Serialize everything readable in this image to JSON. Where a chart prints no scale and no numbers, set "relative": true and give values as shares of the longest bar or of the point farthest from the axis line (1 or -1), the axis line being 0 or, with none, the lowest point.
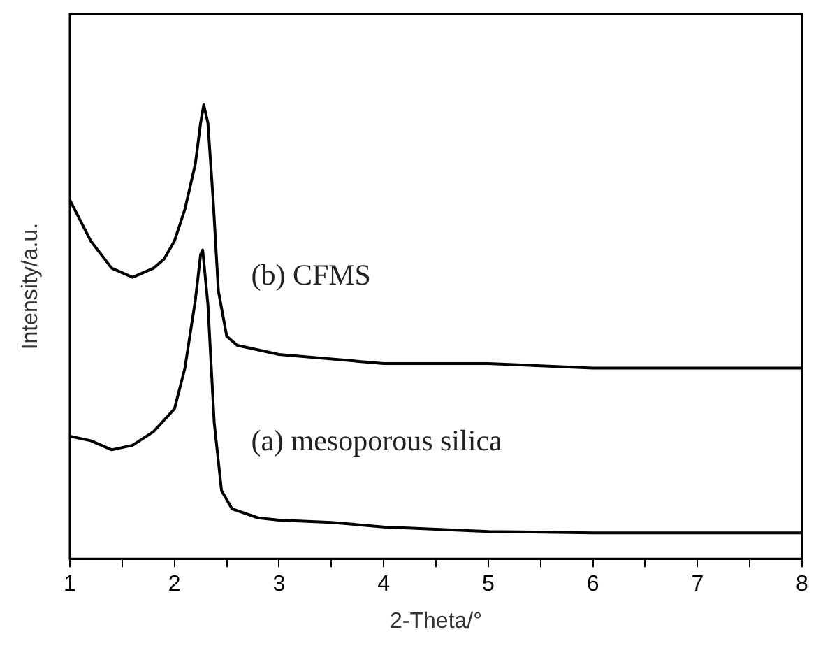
{
  "chart_data": {
    "type": "line",
    "relative": true,
    "xlabel": "2-Theta/°",
    "ylabel": "Intensity/a.u.",
    "xlim": [
      1,
      8
    ],
    "xticks": [
      1,
      {
        "value": 1.5,
        "label": null
      },
      2,
      {
        "value": 2.5,
        "label": null
      },
      3,
      {
        "value": 3.5,
        "label": null
      },
      4,
      {
        "value": 4.5,
        "label": null
      },
      5,
      {
        "value": 5.5,
        "label": null
      },
      6,
      {
        "value": 6.5,
        "label": null
      },
      7,
      {
        "value": 7.5,
        "label": null
      },
      8
    ],
    "grid": false,
    "legend": false,
    "marker": "none",
    "line_style": "solid",
    "series": [
      {
        "name": "(b) CFMS",
        "color": "#000000",
        "x": [
          1,
          1.2,
          1.4,
          1.5,
          1.6,
          1.8,
          1.9,
          2.0,
          2.1,
          2.2,
          2.25,
          2.28,
          2.32,
          2.37,
          2.42,
          2.5,
          2.6,
          3,
          4,
          5,
          6,
          7,
          8
        ],
        "values": [
          0.79,
          0.7,
          0.64,
          0.63,
          0.62,
          0.64,
          0.66,
          0.7,
          0.77,
          0.87,
          0.96,
          1,
          0.96,
          0.79,
          0.59,
          0.49,
          0.47,
          0.45,
          0.43,
          0.43,
          0.42,
          0.42,
          0.42
        ]
      },
      {
        "name": "(a) mesoporous silica",
        "color": "#000000",
        "x": [
          1,
          1.2,
          1.4,
          1.6,
          1.8,
          2.0,
          2.1,
          2.2,
          2.25,
          2.27,
          2.32,
          2.38,
          2.45,
          2.55,
          2.8,
          3,
          3.5,
          4,
          5,
          6,
          7,
          8
        ],
        "values": [
          0.27,
          0.26,
          0.24,
          0.25,
          0.28,
          0.33,
          0.42,
          0.57,
          0.67,
          0.68,
          0.56,
          0.3,
          0.15,
          0.11,
          0.09,
          0.085,
          0.08,
          0.07,
          0.06,
          0.057,
          0.057,
          0.057
        ]
      }
    ]
  }
}
